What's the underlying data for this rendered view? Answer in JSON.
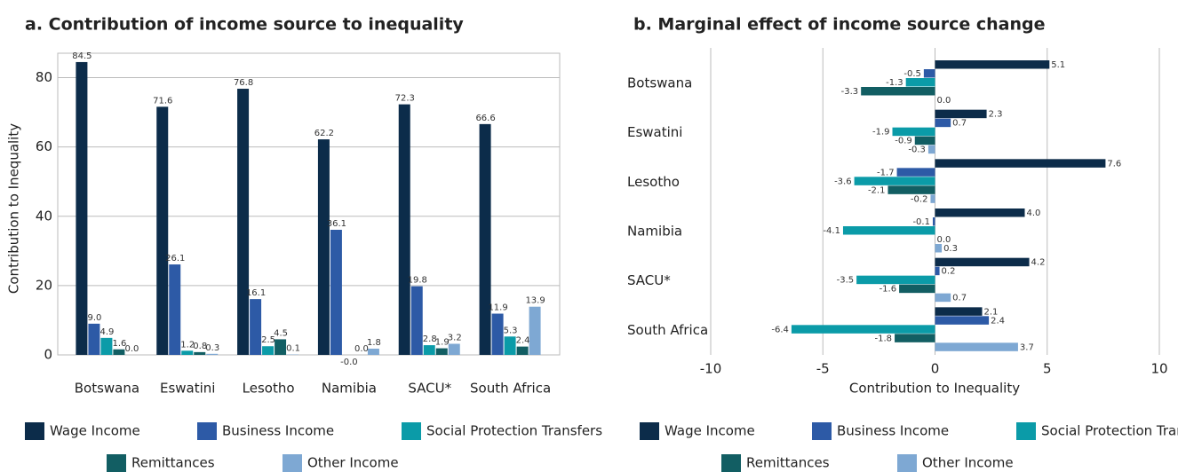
{
  "chart_data": [
    {
      "type": "bar",
      "orientation": "vertical",
      "title": "a. Contribution of income source to inequality",
      "ylabel": "Contribution to Inequality",
      "categories": [
        "Botswana",
        "Eswatini",
        "Lesotho",
        "Namibia",
        "SACU*",
        "South Africa"
      ],
      "series": [
        {
          "name": "Wage Income",
          "color": "#0c2c4a",
          "values": [
            84.5,
            71.6,
            76.8,
            62.2,
            72.3,
            66.6
          ],
          "value_labels": [
            "84.5",
            "71.6",
            "76.8",
            "62.2",
            "72.3",
            "66.6"
          ]
        },
        {
          "name": "Business Income",
          "color": "#2d5aa6",
          "values": [
            9.0,
            26.1,
            16.1,
            36.1,
            19.8,
            11.9
          ],
          "value_labels": [
            "9.0",
            "26.1",
            "16.1",
            "36.1",
            "19.8",
            "11.9"
          ]
        },
        {
          "name": "Social Protection Transfers",
          "color": "#0b9ba8",
          "values": [
            4.9,
            1.2,
            2.5,
            -0.0,
            2.8,
            5.3
          ],
          "value_labels": [
            "4.9",
            "1.2",
            "2.5",
            "-0.0",
            "2.8",
            "5.3"
          ]
        },
        {
          "name": "Remittances",
          "color": "#125e63",
          "values": [
            1.6,
            0.8,
            4.5,
            0.0,
            1.9,
            2.4
          ],
          "value_labels": [
            "1.6",
            "0.8",
            "4.5",
            "0.0",
            "1.9",
            "2.4"
          ]
        },
        {
          "name": "Other Income",
          "color": "#7ea8d3",
          "values": [
            0.0,
            0.3,
            0.1,
            1.8,
            3.2,
            13.9
          ],
          "value_labels": [
            "0.0",
            "0.3",
            "0.1",
            "1.8",
            "3.2",
            "13.9"
          ]
        }
      ],
      "ylim": [
        0,
        85
      ],
      "yticks": [
        0,
        20,
        40,
        60,
        80
      ],
      "grid": true
    },
    {
      "type": "bar",
      "orientation": "horizontal",
      "title": "b. Marginal effect of income source change",
      "xlabel": "Contribution to Inequality",
      "categories": [
        "Botswana",
        "Eswatini",
        "Lesotho",
        "Namibia",
        "SACU*",
        "South Africa"
      ],
      "series": [
        {
          "name": "Wage Income",
          "color": "#0c2c4a",
          "values": [
            5.1,
            2.3,
            7.6,
            4.0,
            4.2,
            2.1
          ],
          "value_labels": [
            "5.1",
            "2.3",
            "7.6",
            "4.0",
            "4.2",
            "2.1"
          ]
        },
        {
          "name": "Business Income",
          "color": "#2d5aa6",
          "values": [
            -0.5,
            0.7,
            -1.7,
            -0.1,
            0.2,
            2.4
          ],
          "value_labels": [
            "-0.5",
            "0.7",
            "-1.7",
            "-0.1",
            "0.2",
            "2.4"
          ]
        },
        {
          "name": "Social Protection Transfers",
          "color": "#0b9ba8",
          "values": [
            -1.3,
            -1.9,
            -3.6,
            -4.1,
            -3.5,
            -6.4
          ],
          "value_labels": [
            "-1.3",
            "-1.9",
            "-3.6",
            "-4.1",
            "-3.5",
            "-6.4"
          ]
        },
        {
          "name": "Remittances",
          "color": "#125e63",
          "values": [
            -3.3,
            -0.9,
            -2.1,
            0.0,
            -1.6,
            -1.8
          ],
          "value_labels": [
            "-3.3",
            "-0.9",
            "-2.1",
            "0.0",
            "-1.6",
            "-1.8"
          ]
        },
        {
          "name": "Other Income",
          "color": "#7ea8d3",
          "values": [
            0.0,
            -0.3,
            -0.2,
            0.3,
            0.7,
            3.7
          ],
          "value_labels": [
            "0.0",
            "-0.3",
            "-0.2",
            "0.3",
            "0.7",
            "3.7"
          ]
        }
      ],
      "xlim": [
        -10,
        10
      ],
      "xticks": [
        -10,
        -5,
        0,
        5,
        10
      ],
      "grid": true
    }
  ]
}
